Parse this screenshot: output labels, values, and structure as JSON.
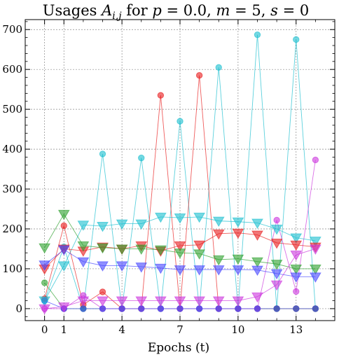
{
  "chart_data": {
    "type": "line",
    "title": "Usages A_{i,j} for p = 0.0, m = 5, s = 0",
    "title_parts": {
      "prefix": "Usages ",
      "A": "A",
      "sub": "i,j",
      "mid1": " for ",
      "p": "p",
      "eq1": " = 0.0, ",
      "m": "m",
      "eq2": " = 5, ",
      "s": "s",
      "eq3": " = 0"
    },
    "xlabel": "Epochs (t)",
    "ylabel": "",
    "xlim": [
      -1,
      15
    ],
    "ylim": [
      -30,
      725
    ],
    "x_ticks": [
      0,
      1,
      4,
      7,
      10,
      13
    ],
    "y_ticks": [
      0,
      100,
      200,
      300,
      400,
      500,
      600,
      700
    ],
    "grid": true,
    "x": [
      0,
      1,
      2,
      3,
      4,
      5,
      6,
      7,
      8,
      9,
      10,
      11,
      12,
      13,
      14
    ],
    "series": [
      {
        "marker": "circle",
        "color": "#17becf",
        "values": [
          20,
          155,
          0,
          388,
          0,
          378,
          0,
          470,
          0,
          605,
          0,
          687,
          0,
          675,
          0
        ]
      },
      {
        "marker": "circle",
        "color": "#e8191a",
        "values": [
          25,
          208,
          10,
          42,
          0,
          0,
          535,
          0,
          585,
          0,
          0,
          0,
          0,
          0,
          0
        ]
      },
      {
        "marker": "circle",
        "color": "#2ca02c",
        "values": [
          65,
          0,
          0,
          0,
          0,
          0,
          0,
          0,
          0,
          0,
          0,
          0,
          0,
          0,
          0
        ]
      },
      {
        "marker": "circle",
        "color": "#cc33dd",
        "values": [
          0,
          0,
          33,
          0,
          0,
          0,
          0,
          0,
          0,
          0,
          0,
          0,
          222,
          43,
          373
        ]
      },
      {
        "marker": "circle",
        "color": "#4444ff",
        "values": [
          20,
          0,
          0,
          0,
          0,
          0,
          0,
          0,
          0,
          0,
          0,
          0,
          0,
          0,
          0
        ]
      },
      {
        "marker": "triangle",
        "color": "#17becf",
        "values": [
          20,
          108,
          210,
          207,
          213,
          213,
          230,
          228,
          230,
          220,
          218,
          215,
          200,
          178,
          170
        ]
      },
      {
        "marker": "triangle",
        "color": "#e8191a",
        "values": [
          100,
          150,
          145,
          155,
          150,
          158,
          145,
          158,
          160,
          188,
          190,
          185,
          165,
          160,
          155
        ]
      },
      {
        "marker": "triangle",
        "color": "#2ca02c",
        "values": [
          153,
          237,
          158,
          153,
          150,
          150,
          148,
          140,
          138,
          123,
          125,
          118,
          112,
          100,
          100
        ]
      },
      {
        "marker": "triangle",
        "color": "#4444ff",
        "values": [
          110,
          148,
          118,
          108,
          108,
          105,
          102,
          98,
          98,
          98,
          98,
          97,
          88,
          80,
          80
        ]
      },
      {
        "marker": "triangle",
        "color": "#cc33dd",
        "values": [
          0,
          5,
          20,
          20,
          20,
          20,
          20,
          20,
          20,
          20,
          20,
          30,
          60,
          135,
          150
        ]
      }
    ]
  }
}
